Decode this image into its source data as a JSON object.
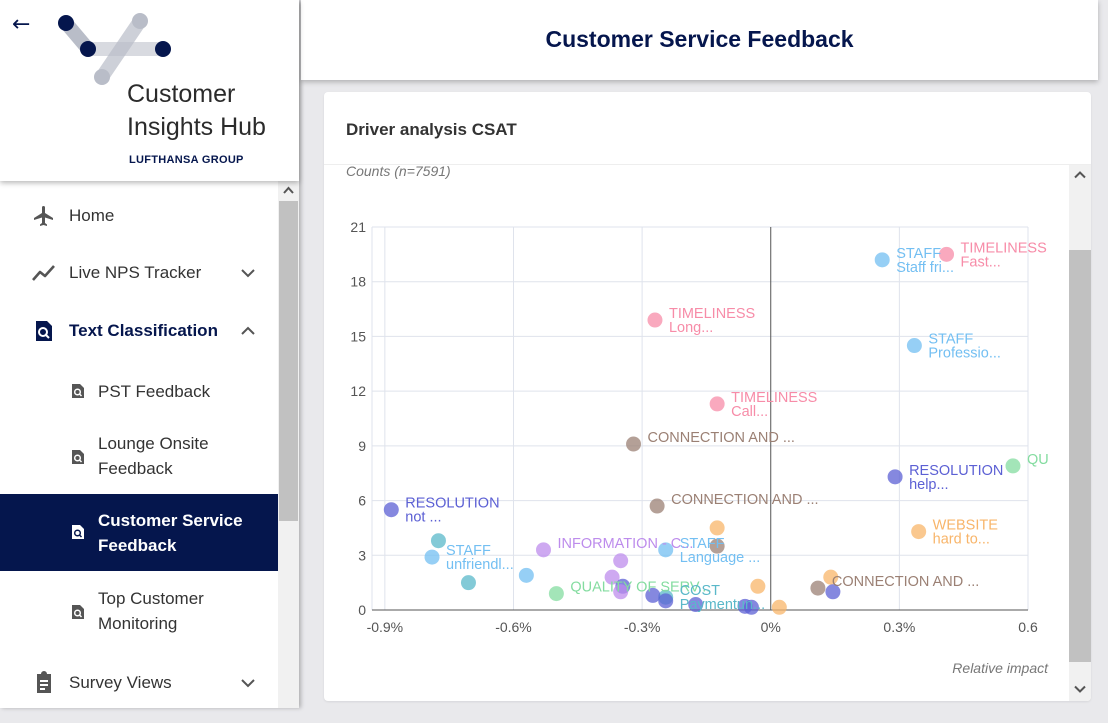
{
  "app": {
    "hub_name_line1": "Customer",
    "hub_name_line2": "Insights Hub",
    "group_name": "LUFTHANSA GROUP"
  },
  "header": {
    "title": "Customer Service Feedback"
  },
  "nav": {
    "items": [
      {
        "label": "Home",
        "icon": "airplane-icon"
      },
      {
        "label": "Live NPS Tracker",
        "icon": "trend-line-icon"
      },
      {
        "label": "Text Classification",
        "icon": "text-search-icon"
      },
      {
        "label": "Survey Views",
        "icon": "clipboard-icon"
      }
    ],
    "sub_items": [
      {
        "label_lines": [
          "PST Feedback"
        ]
      },
      {
        "label_lines": [
          "Lounge Onsite",
          "Feedback"
        ]
      },
      {
        "label_lines": [
          "Customer Service",
          "Feedback"
        ],
        "active": true
      },
      {
        "label_lines": [
          "Top Customer",
          "Monitoring"
        ]
      }
    ]
  },
  "card": {
    "title": "Driver analysis CSAT"
  },
  "colors": {
    "brand_navy": "#05164d",
    "blue": "#73bff2",
    "pink": "#f78ca8",
    "brown": "#9b8074",
    "indigo": "#5c60d4",
    "orange": "#f8b56a",
    "green": "#84dca0",
    "purple": "#bd8cec",
    "teal": "#5ab8c9"
  },
  "chart_data": {
    "type": "scatter",
    "ylabel": "Counts (n=7591)",
    "xlabel": "Relative impact",
    "x_ticks": [
      "-0.9%",
      "-0.6%",
      "-0.3%",
      "0%",
      "0.3%",
      "0.6"
    ],
    "x_tick_values": [
      -0.9,
      -0.6,
      -0.3,
      0,
      0.3,
      0.6
    ],
    "y_ticks": [
      "0",
      "3",
      "6",
      "9",
      "12",
      "15",
      "18",
      "21"
    ],
    "xlim": [
      -0.93,
      0.6
    ],
    "ylim": [
      0,
      21
    ],
    "grid": true,
    "points": [
      {
        "x": 0.26,
        "y": 19.2,
        "color": "blue",
        "label": "STAFF",
        "sublabel": "Staff fri..."
      },
      {
        "x": 0.41,
        "y": 19.5,
        "color": "pink",
        "label": "TIMELINESS",
        "sublabel": "Fast..."
      },
      {
        "x": -0.27,
        "y": 15.9,
        "color": "pink",
        "label": "TIMELINESS",
        "sublabel": "Long..."
      },
      {
        "x": 0.335,
        "y": 14.5,
        "color": "blue",
        "label": "STAFF",
        "sublabel": "Professio..."
      },
      {
        "x": -0.125,
        "y": 11.3,
        "color": "pink",
        "label": "TIMELINESS",
        "sublabel": "Call..."
      },
      {
        "x": -0.32,
        "y": 9.1,
        "color": "brown",
        "label": "CONNECTION AND ...",
        "sublabel": ""
      },
      {
        "x": 0.565,
        "y": 7.9,
        "color": "green",
        "label": "QU",
        "sublabel": ""
      },
      {
        "x": 0.29,
        "y": 7.3,
        "color": "indigo",
        "label": "RESOLUTION",
        "sublabel": "help..."
      },
      {
        "x": -0.265,
        "y": 5.7,
        "color": "brown",
        "label": "CONNECTION AND ...",
        "sublabel": ""
      },
      {
        "x": -0.885,
        "y": 5.5,
        "color": "indigo",
        "label": "RESOLUTION",
        "sublabel": "not ..."
      },
      {
        "x": 0.345,
        "y": 4.3,
        "color": "orange",
        "label": "WEBSITE",
        "sublabel": "hard to..."
      },
      {
        "x": -0.125,
        "y": 4.5,
        "color": "orange",
        "label": "",
        "sublabel": ""
      },
      {
        "x": -0.245,
        "y": 3.3,
        "color": "blue",
        "label": "STAFF",
        "sublabel": "Language ..."
      },
      {
        "x": -0.125,
        "y": 3.5,
        "color": "brown",
        "label": "",
        "sublabel": ""
      },
      {
        "x": -0.775,
        "y": 3.8,
        "color": "teal",
        "label": "",
        "sublabel": ""
      },
      {
        "x": -0.79,
        "y": 2.9,
        "color": "blue",
        "label": "STAFF",
        "sublabel": "unfriendl..."
      },
      {
        "x": -0.53,
        "y": 3.3,
        "color": "purple",
        "label": "INFORMATION - C...",
        "sublabel": ""
      },
      {
        "x": -0.35,
        "y": 2.7,
        "color": "purple",
        "label": "",
        "sublabel": ""
      },
      {
        "x": -0.57,
        "y": 1.9,
        "color": "blue",
        "label": "",
        "sublabel": ""
      },
      {
        "x": -0.705,
        "y": 1.5,
        "color": "teal",
        "label": "",
        "sublabel": ""
      },
      {
        "x": -0.37,
        "y": 1.8,
        "color": "purple",
        "label": "",
        "sublabel": ""
      },
      {
        "x": -0.345,
        "y": 1.3,
        "color": "indigo",
        "label": "",
        "sublabel": ""
      },
      {
        "x": -0.35,
        "y": 1.0,
        "color": "purple",
        "label": "",
        "sublabel": ""
      },
      {
        "x": -0.5,
        "y": 0.9,
        "color": "green",
        "label": "QUALITY OF SERV...",
        "sublabel": ""
      },
      {
        "x": -0.245,
        "y": 0.7,
        "color": "teal",
        "label": "COST",
        "sublabel": "Paymentun..."
      },
      {
        "x": -0.245,
        "y": 0.5,
        "color": "indigo",
        "label": "",
        "sublabel": ""
      },
      {
        "x": -0.275,
        "y": 0.8,
        "color": "indigo",
        "label": "",
        "sublabel": ""
      },
      {
        "x": -0.175,
        "y": 0.3,
        "color": "indigo",
        "label": "",
        "sublabel": ""
      },
      {
        "x": -0.03,
        "y": 1.3,
        "color": "orange",
        "label": "",
        "sublabel": ""
      },
      {
        "x": -0.06,
        "y": 0.2,
        "color": "indigo",
        "label": "",
        "sublabel": ""
      },
      {
        "x": -0.045,
        "y": 0.15,
        "color": "indigo",
        "label": "",
        "sublabel": ""
      },
      {
        "x": 0.02,
        "y": 0.15,
        "color": "orange",
        "label": "",
        "sublabel": ""
      },
      {
        "x": 0.14,
        "y": 1.8,
        "color": "orange",
        "label": "",
        "sublabel": ""
      },
      {
        "x": 0.11,
        "y": 1.2,
        "color": "brown",
        "label": "CONNECTION AND ...",
        "sublabel": ""
      },
      {
        "x": 0.145,
        "y": 1.0,
        "color": "indigo",
        "label": "",
        "sublabel": ""
      }
    ]
  }
}
